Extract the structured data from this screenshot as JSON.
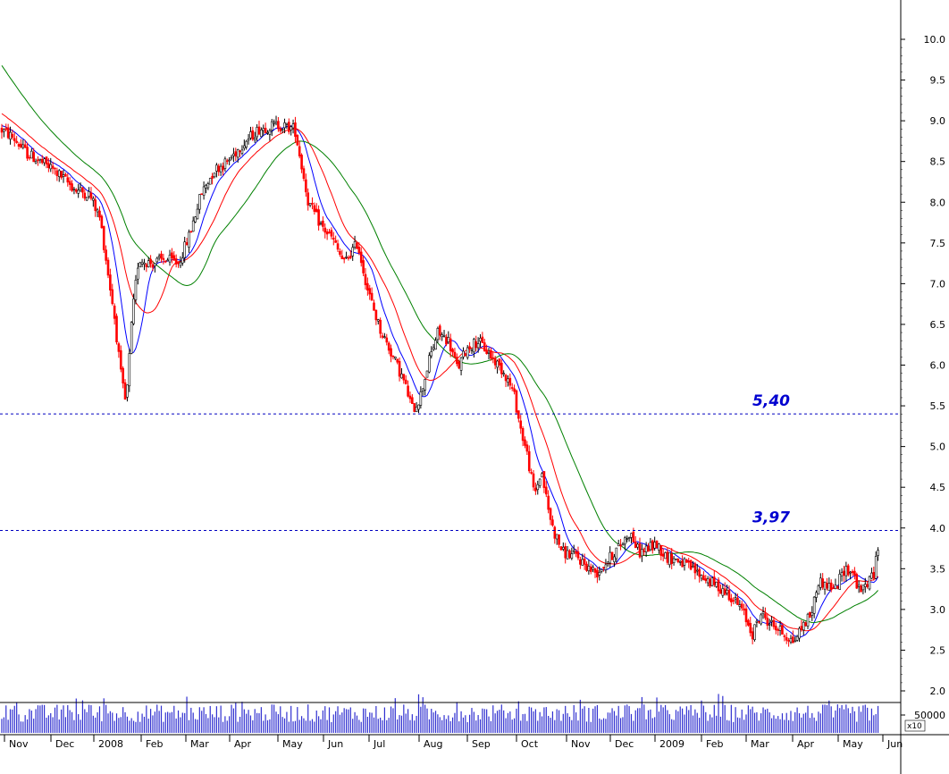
{
  "chart_data": {
    "type": "candlestick",
    "y_range": [
      1.85,
      10.35
    ],
    "y_ticks": [
      "10.0",
      "9.5",
      "9.0",
      "8.5",
      "8.0",
      "7.5",
      "7.0",
      "6.5",
      "6.0",
      "5.5",
      "5.0",
      "4.5",
      "4.0",
      "3.5",
      "3.0",
      "2.5",
      "2.0"
    ],
    "x_labels": [
      "Nov",
      "Dec",
      "2008",
      "Feb",
      "Mar",
      "Apr",
      "May",
      "Jun",
      "Jul",
      "Aug",
      "Sep",
      "Oct",
      "Nov",
      "Dec",
      "2009",
      "Feb",
      "Mar",
      "Apr",
      "May",
      "Jun"
    ],
    "price_anchors": [
      [
        0,
        8.9
      ],
      [
        14,
        8.8
      ],
      [
        30,
        8.6
      ],
      [
        60,
        8.4
      ],
      [
        85,
        8.15
      ],
      [
        100,
        8.1
      ],
      [
        112,
        7.8
      ],
      [
        120,
        7.2
      ],
      [
        128,
        6.6
      ],
      [
        135,
        5.9
      ],
      [
        141,
        5.5
      ],
      [
        148,
        6.6
      ],
      [
        155,
        7.3
      ],
      [
        170,
        7.25
      ],
      [
        185,
        7.3
      ],
      [
        200,
        7.25
      ],
      [
        212,
        7.6
      ],
      [
        225,
        8.1
      ],
      [
        240,
        8.4
      ],
      [
        255,
        8.5
      ],
      [
        270,
        8.7
      ],
      [
        290,
        8.9
      ],
      [
        310,
        8.95
      ],
      [
        330,
        8.9
      ],
      [
        345,
        8.0
      ],
      [
        360,
        7.7
      ],
      [
        372,
        7.55
      ],
      [
        385,
        7.25
      ],
      [
        400,
        7.5
      ],
      [
        412,
        6.9
      ],
      [
        425,
        6.45
      ],
      [
        440,
        6.1
      ],
      [
        452,
        5.8
      ],
      [
        462,
        5.45
      ],
      [
        470,
        5.6
      ],
      [
        480,
        6.05
      ],
      [
        490,
        6.4
      ],
      [
        502,
        6.3
      ],
      [
        512,
        5.95
      ],
      [
        522,
        6.2
      ],
      [
        535,
        6.3
      ],
      [
        550,
        6.1
      ],
      [
        565,
        5.9
      ],
      [
        575,
        5.65
      ],
      [
        583,
        5.2
      ],
      [
        590,
        4.9
      ],
      [
        598,
        4.4
      ],
      [
        606,
        4.7
      ],
      [
        614,
        4.2
      ],
      [
        620,
        3.95
      ],
      [
        630,
        3.7
      ],
      [
        645,
        3.65
      ],
      [
        660,
        3.5
      ],
      [
        668,
        3.45
      ],
      [
        680,
        3.6
      ],
      [
        695,
        3.8
      ],
      [
        705,
        3.95
      ],
      [
        715,
        3.7
      ],
      [
        725,
        3.75
      ],
      [
        735,
        3.8
      ],
      [
        745,
        3.65
      ],
      [
        760,
        3.6
      ],
      [
        780,
        3.45
      ],
      [
        800,
        3.3
      ],
      [
        815,
        3.2
      ],
      [
        830,
        3.0
      ],
      [
        842,
        2.7
      ],
      [
        852,
        2.95
      ],
      [
        860,
        2.85
      ],
      [
        872,
        2.75
      ],
      [
        888,
        2.6
      ],
      [
        898,
        2.8
      ],
      [
        908,
        2.95
      ],
      [
        916,
        3.35
      ],
      [
        925,
        3.3
      ],
      [
        935,
        3.25
      ],
      [
        945,
        3.5
      ],
      [
        955,
        3.45
      ],
      [
        962,
        3.2
      ],
      [
        972,
        3.35
      ],
      [
        978,
        3.45
      ],
      [
        984,
        3.82
      ]
    ],
    "moving_averages": [
      {
        "color": "#0000ff",
        "period": 10
      },
      {
        "color": "#ff0000",
        "period": 20
      },
      {
        "color": "#008000",
        "period": 40
      }
    ],
    "reference_lines": [
      {
        "value": 5.4,
        "label": "5,40"
      },
      {
        "value": 3.97,
        "label": "3,97"
      }
    ],
    "volume_tick": "50000",
    "volume_unit": "x10"
  }
}
